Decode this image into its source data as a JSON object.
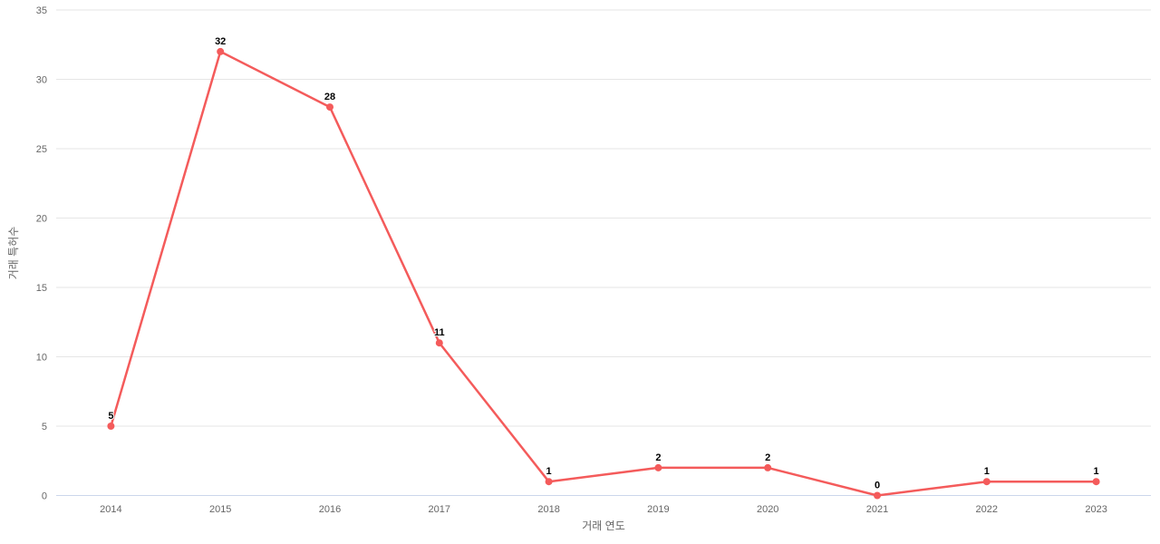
{
  "chart_data": {
    "type": "line",
    "categories": [
      "2014",
      "2015",
      "2016",
      "2017",
      "2018",
      "2019",
      "2020",
      "2021",
      "2022",
      "2023"
    ],
    "values": [
      5,
      32,
      28,
      11,
      1,
      2,
      2,
      0,
      1,
      1
    ],
    "title": "",
    "xlabel": "거래 연도",
    "ylabel": "거래 특허수",
    "ylim": [
      0,
      35
    ],
    "yticks": [
      0,
      5,
      10,
      15,
      20,
      25,
      30,
      35
    ],
    "grid": true,
    "legend_position": "none",
    "colors": {
      "series": "#f45b5b",
      "gridline": "#e6e6e6",
      "axis_line": "#ccd6eb",
      "tick_label": "#666666",
      "axis_title": "#666666",
      "data_label": "#000000",
      "background": "#ffffff"
    },
    "marker": {
      "shape": "circle",
      "radius": 4
    },
    "line_width": 2.5
  }
}
